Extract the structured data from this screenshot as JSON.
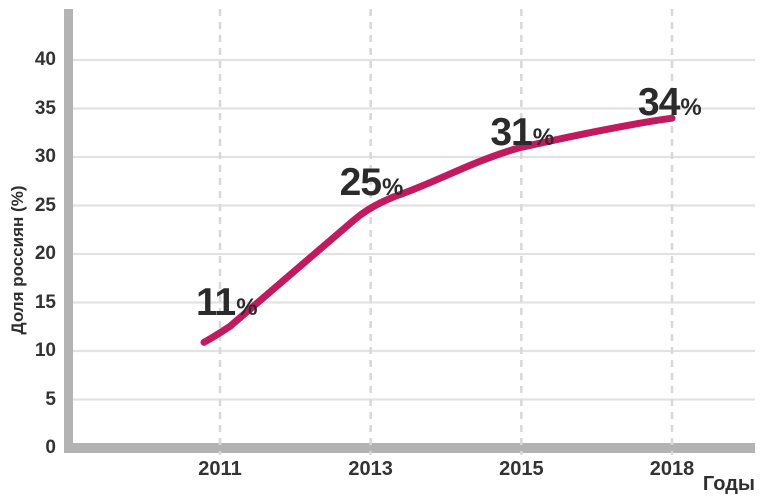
{
  "chart_data": {
    "type": "line",
    "title": "",
    "categories": [
      "2011",
      "2013",
      "2015",
      "2018"
    ],
    "values": [
      11,
      25,
      31,
      34
    ],
    "point_labels": [
      "11%",
      "25%",
      "31%",
      "34%"
    ],
    "xlabel": "Годы",
    "ylabel": "Доля россиян (%)",
    "yticks": [
      0,
      5,
      10,
      15,
      20,
      25,
      30,
      35,
      40
    ],
    "ylim": [
      0,
      45
    ],
    "grid": "solid horizontal lines at each ytick, dashed vertical lines at each year",
    "legend": "none",
    "line_color": "#C3195E",
    "axis_color": "#B3B3B3",
    "grid_color": "#E2E2E2",
    "dash_color": "#D8D8D8",
    "label_color": "#2B2B2B",
    "tick_color": "#333333"
  }
}
